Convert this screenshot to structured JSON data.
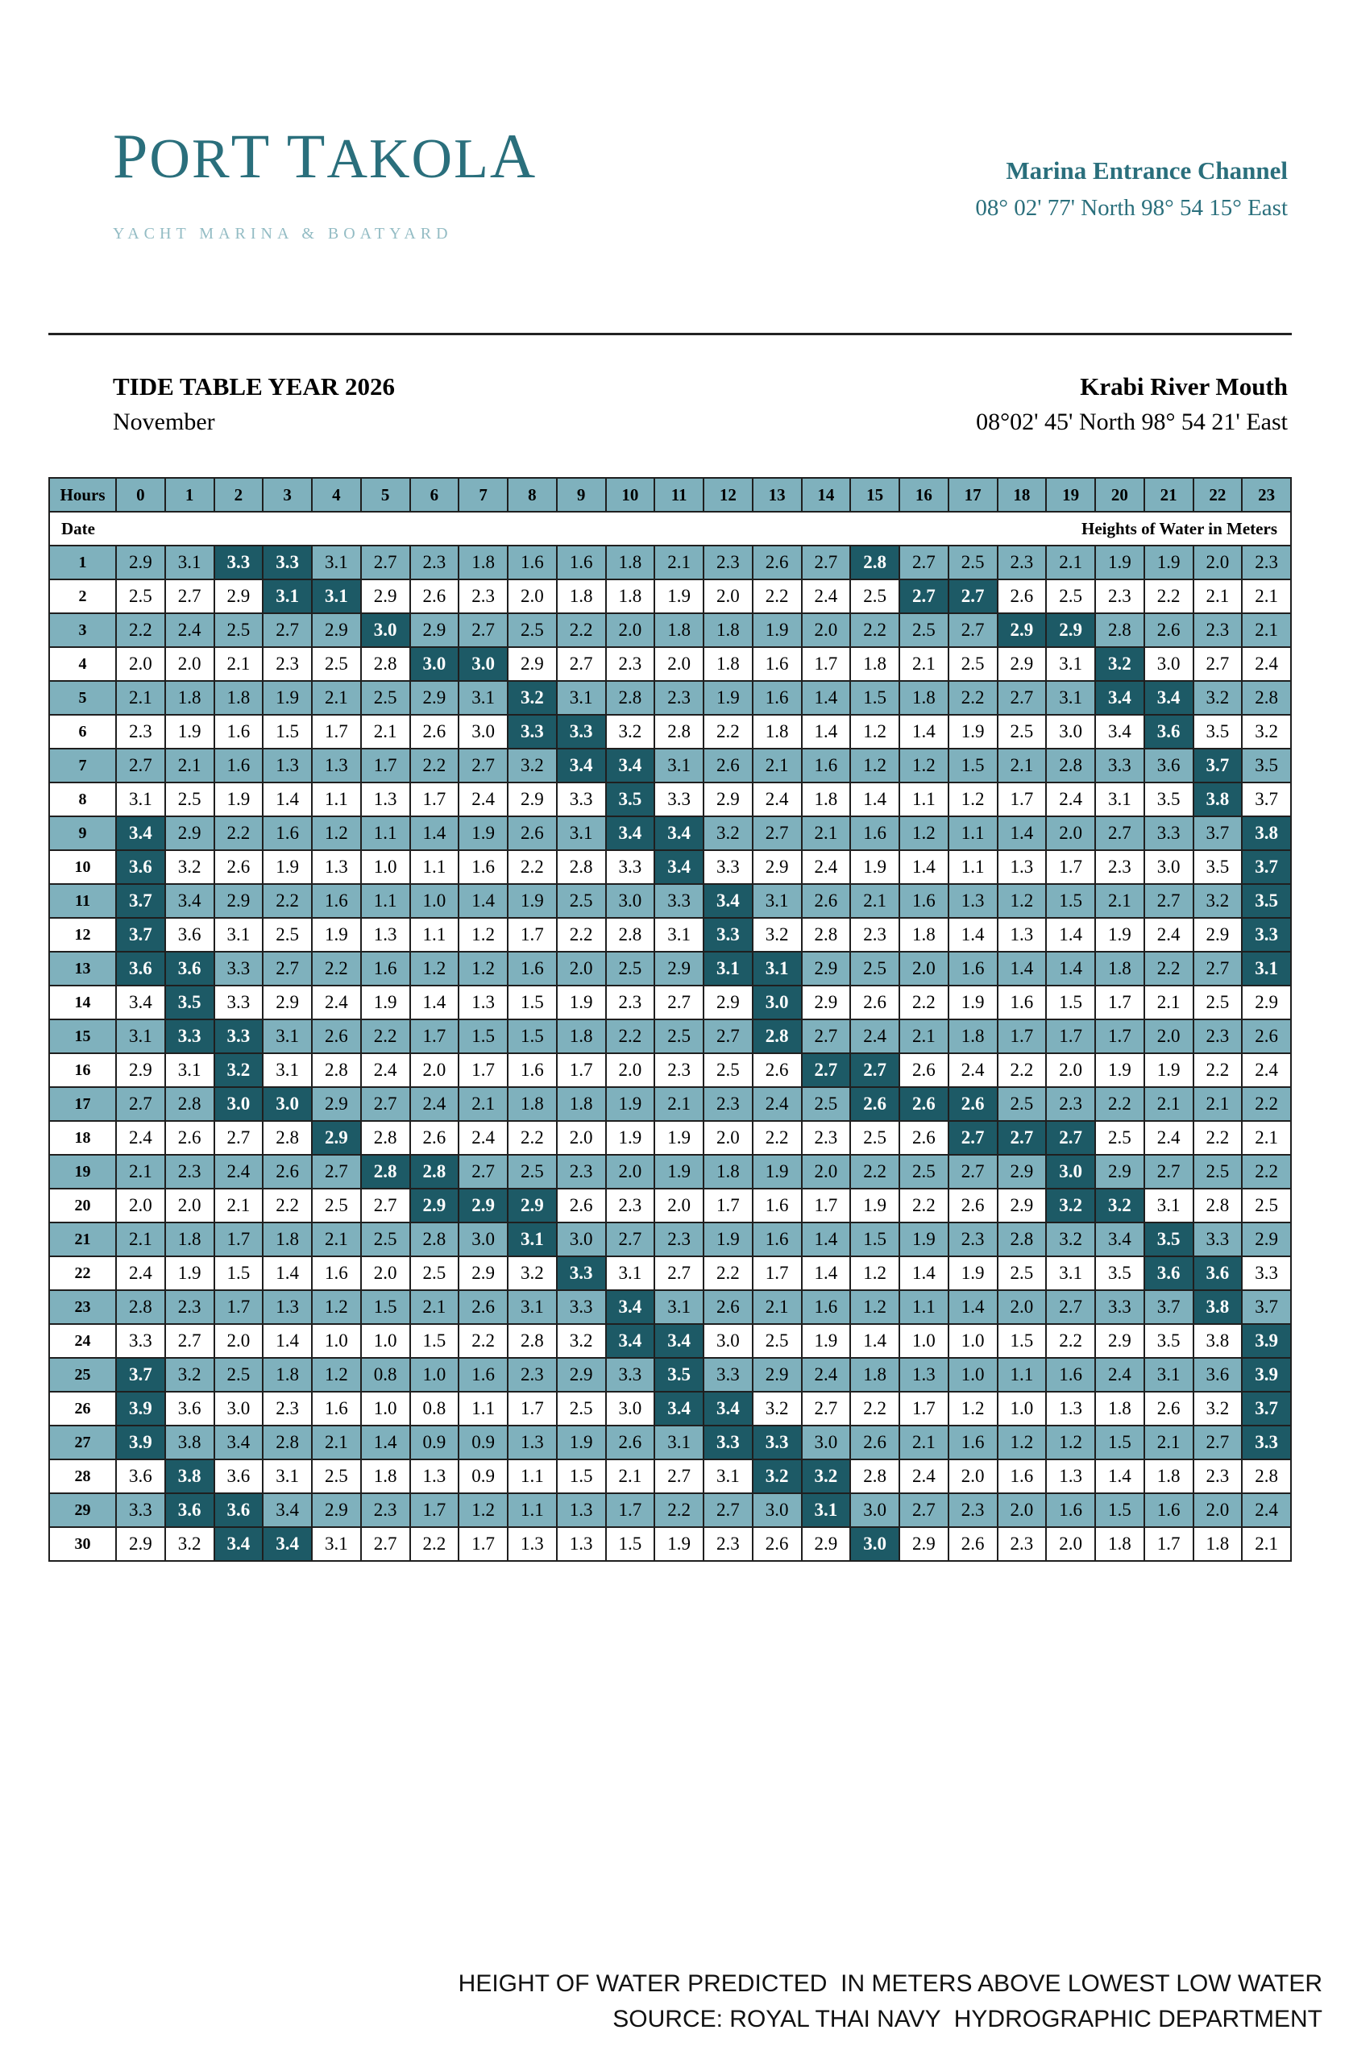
{
  "logo": {
    "name_p": "P",
    "name_or": "OR",
    "name_t": "T",
    "name_space": " ",
    "name_t2": "T",
    "name_akol": "AKOL",
    "name_a": "A",
    "tagline": "YACHT MARINA & BOATYARD"
  },
  "marina": {
    "title": "Marina Entrance Channel",
    "coords": "08° 02' 77' North  98° 54 15° East"
  },
  "tide": {
    "title": "TIDE TABLE YEAR 2026",
    "month": "November",
    "location": "Krabi River Mouth",
    "location_coords": "08°02' 45' North 98° 54 21' East"
  },
  "table": {
    "hours_label": "Hours",
    "date_label": "Date",
    "heights_label": "Heights of Water in Meters",
    "hours": [
      "0",
      "1",
      "2",
      "3",
      "4",
      "5",
      "6",
      "7",
      "8",
      "9",
      "10",
      "11",
      "12",
      "13",
      "14",
      "15",
      "16",
      "17",
      "18",
      "19",
      "20",
      "21",
      "22",
      "23"
    ],
    "rows": [
      {
        "day": "1",
        "values": [
          "2.9",
          "3.1",
          "3.3",
          "3.3",
          "3.1",
          "2.7",
          "2.3",
          "1.8",
          "1.6",
          "1.6",
          "1.8",
          "2.1",
          "2.3",
          "2.6",
          "2.7",
          "2.8",
          "2.7",
          "2.5",
          "2.3",
          "2.1",
          "1.9",
          "1.9",
          "2.0",
          "2.3"
        ],
        "highlights": [
          2,
          3,
          15
        ]
      },
      {
        "day": "2",
        "values": [
          "2.5",
          "2.7",
          "2.9",
          "3.1",
          "3.1",
          "2.9",
          "2.6",
          "2.3",
          "2.0",
          "1.8",
          "1.8",
          "1.9",
          "2.0",
          "2.2",
          "2.4",
          "2.5",
          "2.7",
          "2.7",
          "2.6",
          "2.5",
          "2.3",
          "2.2",
          "2.1",
          "2.1"
        ],
        "highlights": [
          3,
          4,
          16,
          17
        ]
      },
      {
        "day": "3",
        "values": [
          "2.2",
          "2.4",
          "2.5",
          "2.7",
          "2.9",
          "3.0",
          "2.9",
          "2.7",
          "2.5",
          "2.2",
          "2.0",
          "1.8",
          "1.8",
          "1.9",
          "2.0",
          "2.2",
          "2.5",
          "2.7",
          "2.9",
          "2.9",
          "2.8",
          "2.6",
          "2.3",
          "2.1"
        ],
        "highlights": [
          5,
          18,
          19
        ]
      },
      {
        "day": "4",
        "values": [
          "2.0",
          "2.0",
          "2.1",
          "2.3",
          "2.5",
          "2.8",
          "3.0",
          "3.0",
          "2.9",
          "2.7",
          "2.3",
          "2.0",
          "1.8",
          "1.6",
          "1.7",
          "1.8",
          "2.1",
          "2.5",
          "2.9",
          "3.1",
          "3.2",
          "3.0",
          "2.7",
          "2.4"
        ],
        "highlights": [
          6,
          7,
          20
        ]
      },
      {
        "day": "5",
        "values": [
          "2.1",
          "1.8",
          "1.8",
          "1.9",
          "2.1",
          "2.5",
          "2.9",
          "3.1",
          "3.2",
          "3.1",
          "2.8",
          "2.3",
          "1.9",
          "1.6",
          "1.4",
          "1.5",
          "1.8",
          "2.2",
          "2.7",
          "3.1",
          "3.4",
          "3.4",
          "3.2",
          "2.8"
        ],
        "highlights": [
          8,
          20,
          21
        ]
      },
      {
        "day": "6",
        "values": [
          "2.3",
          "1.9",
          "1.6",
          "1.5",
          "1.7",
          "2.1",
          "2.6",
          "3.0",
          "3.3",
          "3.3",
          "3.2",
          "2.8",
          "2.2",
          "1.8",
          "1.4",
          "1.2",
          "1.4",
          "1.9",
          "2.5",
          "3.0",
          "3.4",
          "3.6",
          "3.5",
          "3.2"
        ],
        "highlights": [
          8,
          9,
          21
        ]
      },
      {
        "day": "7",
        "values": [
          "2.7",
          "2.1",
          "1.6",
          "1.3",
          "1.3",
          "1.7",
          "2.2",
          "2.7",
          "3.2",
          "3.4",
          "3.4",
          "3.1",
          "2.6",
          "2.1",
          "1.6",
          "1.2",
          "1.2",
          "1.5",
          "2.1",
          "2.8",
          "3.3",
          "3.6",
          "3.7",
          "3.5"
        ],
        "highlights": [
          9,
          10,
          22
        ]
      },
      {
        "day": "8",
        "values": [
          "3.1",
          "2.5",
          "1.9",
          "1.4",
          "1.1",
          "1.3",
          "1.7",
          "2.4",
          "2.9",
          "3.3",
          "3.5",
          "3.3",
          "2.9",
          "2.4",
          "1.8",
          "1.4",
          "1.1",
          "1.2",
          "1.7",
          "2.4",
          "3.1",
          "3.5",
          "3.8",
          "3.7"
        ],
        "highlights": [
          10,
          22
        ]
      },
      {
        "day": "9",
        "values": [
          "3.4",
          "2.9",
          "2.2",
          "1.6",
          "1.2",
          "1.1",
          "1.4",
          "1.9",
          "2.6",
          "3.1",
          "3.4",
          "3.4",
          "3.2",
          "2.7",
          "2.1",
          "1.6",
          "1.2",
          "1.1",
          "1.4",
          "2.0",
          "2.7",
          "3.3",
          "3.7",
          "3.8"
        ],
        "highlights": [
          0,
          10,
          11,
          23
        ]
      },
      {
        "day": "10",
        "values": [
          "3.6",
          "3.2",
          "2.6",
          "1.9",
          "1.3",
          "1.0",
          "1.1",
          "1.6",
          "2.2",
          "2.8",
          "3.3",
          "3.4",
          "3.3",
          "2.9",
          "2.4",
          "1.9",
          "1.4",
          "1.1",
          "1.3",
          "1.7",
          "2.3",
          "3.0",
          "3.5",
          "3.7"
        ],
        "highlights": [
          0,
          11,
          23
        ]
      },
      {
        "day": "11",
        "values": [
          "3.7",
          "3.4",
          "2.9",
          "2.2",
          "1.6",
          "1.1",
          "1.0",
          "1.4",
          "1.9",
          "2.5",
          "3.0",
          "3.3",
          "3.4",
          "3.1",
          "2.6",
          "2.1",
          "1.6",
          "1.3",
          "1.2",
          "1.5",
          "2.1",
          "2.7",
          "3.2",
          "3.5"
        ],
        "highlights": [
          0,
          12,
          23
        ]
      },
      {
        "day": "12",
        "values": [
          "3.7",
          "3.6",
          "3.1",
          "2.5",
          "1.9",
          "1.3",
          "1.1",
          "1.2",
          "1.7",
          "2.2",
          "2.8",
          "3.1",
          "3.3",
          "3.2",
          "2.8",
          "2.3",
          "1.8",
          "1.4",
          "1.3",
          "1.4",
          "1.9",
          "2.4",
          "2.9",
          "3.3"
        ],
        "highlights": [
          0,
          12,
          23
        ]
      },
      {
        "day": "13",
        "values": [
          "3.6",
          "3.6",
          "3.3",
          "2.7",
          "2.2",
          "1.6",
          "1.2",
          "1.2",
          "1.6",
          "2.0",
          "2.5",
          "2.9",
          "3.1",
          "3.1",
          "2.9",
          "2.5",
          "2.0",
          "1.6",
          "1.4",
          "1.4",
          "1.8",
          "2.2",
          "2.7",
          "3.1"
        ],
        "highlights": [
          0,
          1,
          12,
          13,
          23
        ]
      },
      {
        "day": "14",
        "values": [
          "3.4",
          "3.5",
          "3.3",
          "2.9",
          "2.4",
          "1.9",
          "1.4",
          "1.3",
          "1.5",
          "1.9",
          "2.3",
          "2.7",
          "2.9",
          "3.0",
          "2.9",
          "2.6",
          "2.2",
          "1.9",
          "1.6",
          "1.5",
          "1.7",
          "2.1",
          "2.5",
          "2.9"
        ],
        "highlights": [
          1,
          13
        ]
      },
      {
        "day": "15",
        "values": [
          "3.1",
          "3.3",
          "3.3",
          "3.1",
          "2.6",
          "2.2",
          "1.7",
          "1.5",
          "1.5",
          "1.8",
          "2.2",
          "2.5",
          "2.7",
          "2.8",
          "2.7",
          "2.4",
          "2.1",
          "1.8",
          "1.7",
          "1.7",
          "1.7",
          "2.0",
          "2.3",
          "2.6"
        ],
        "highlights": [
          1,
          2,
          13
        ]
      },
      {
        "day": "16",
        "values": [
          "2.9",
          "3.1",
          "3.2",
          "3.1",
          "2.8",
          "2.4",
          "2.0",
          "1.7",
          "1.6",
          "1.7",
          "2.0",
          "2.3",
          "2.5",
          "2.6",
          "2.7",
          "2.7",
          "2.6",
          "2.4",
          "2.2",
          "2.0",
          "1.9",
          "1.9",
          "2.2",
          "2.4"
        ],
        "highlights": [
          2,
          14,
          15
        ]
      },
      {
        "day": "17",
        "values": [
          "2.7",
          "2.8",
          "3.0",
          "3.0",
          "2.9",
          "2.7",
          "2.4",
          "2.1",
          "1.8",
          "1.8",
          "1.9",
          "2.1",
          "2.3",
          "2.4",
          "2.5",
          "2.6",
          "2.6",
          "2.6",
          "2.5",
          "2.3",
          "2.2",
          "2.1",
          "2.1",
          "2.2"
        ],
        "highlights": [
          2,
          3,
          15,
          16,
          17
        ]
      },
      {
        "day": "18",
        "values": [
          "2.4",
          "2.6",
          "2.7",
          "2.8",
          "2.9",
          "2.8",
          "2.6",
          "2.4",
          "2.2",
          "2.0",
          "1.9",
          "1.9",
          "2.0",
          "2.2",
          "2.3",
          "2.5",
          "2.6",
          "2.7",
          "2.7",
          "2.7",
          "2.5",
          "2.4",
          "2.2",
          "2.1"
        ],
        "highlights": [
          4,
          17,
          18,
          19
        ]
      },
      {
        "day": "19",
        "values": [
          "2.1",
          "2.3",
          "2.4",
          "2.6",
          "2.7",
          "2.8",
          "2.8",
          "2.7",
          "2.5",
          "2.3",
          "2.0",
          "1.9",
          "1.8",
          "1.9",
          "2.0",
          "2.2",
          "2.5",
          "2.7",
          "2.9",
          "3.0",
          "2.9",
          "2.7",
          "2.5",
          "2.2"
        ],
        "highlights": [
          5,
          6,
          19
        ]
      },
      {
        "day": "20",
        "values": [
          "2.0",
          "2.0",
          "2.1",
          "2.2",
          "2.5",
          "2.7",
          "2.9",
          "2.9",
          "2.9",
          "2.6",
          "2.3",
          "2.0",
          "1.7",
          "1.6",
          "1.7",
          "1.9",
          "2.2",
          "2.6",
          "2.9",
          "3.2",
          "3.2",
          "3.1",
          "2.8",
          "2.5"
        ],
        "highlights": [
          6,
          7,
          8,
          19,
          20
        ]
      },
      {
        "day": "21",
        "values": [
          "2.1",
          "1.8",
          "1.7",
          "1.8",
          "2.1",
          "2.5",
          "2.8",
          "3.0",
          "3.1",
          "3.0",
          "2.7",
          "2.3",
          "1.9",
          "1.6",
          "1.4",
          "1.5",
          "1.9",
          "2.3",
          "2.8",
          "3.2",
          "3.4",
          "3.5",
          "3.3",
          "2.9"
        ],
        "highlights": [
          8,
          21
        ]
      },
      {
        "day": "22",
        "values": [
          "2.4",
          "1.9",
          "1.5",
          "1.4",
          "1.6",
          "2.0",
          "2.5",
          "2.9",
          "3.2",
          "3.3",
          "3.1",
          "2.7",
          "2.2",
          "1.7",
          "1.4",
          "1.2",
          "1.4",
          "1.9",
          "2.5",
          "3.1",
          "3.5",
          "3.6",
          "3.6",
          "3.3"
        ],
        "highlights": [
          9,
          21,
          22
        ]
      },
      {
        "day": "23",
        "values": [
          "2.8",
          "2.3",
          "1.7",
          "1.3",
          "1.2",
          "1.5",
          "2.1",
          "2.6",
          "3.1",
          "3.3",
          "3.4",
          "3.1",
          "2.6",
          "2.1",
          "1.6",
          "1.2",
          "1.1",
          "1.4",
          "2.0",
          "2.7",
          "3.3",
          "3.7",
          "3.8",
          "3.7"
        ],
        "highlights": [
          10,
          22
        ]
      },
      {
        "day": "24",
        "values": [
          "3.3",
          "2.7",
          "2.0",
          "1.4",
          "1.0",
          "1.0",
          "1.5",
          "2.2",
          "2.8",
          "3.2",
          "3.4",
          "3.4",
          "3.0",
          "2.5",
          "1.9",
          "1.4",
          "1.0",
          "1.0",
          "1.5",
          "2.2",
          "2.9",
          "3.5",
          "3.8",
          "3.9"
        ],
        "highlights": [
          10,
          11,
          23
        ]
      },
      {
        "day": "25",
        "values": [
          "3.7",
          "3.2",
          "2.5",
          "1.8",
          "1.2",
          "0.8",
          "1.0",
          "1.6",
          "2.3",
          "2.9",
          "3.3",
          "3.5",
          "3.3",
          "2.9",
          "2.4",
          "1.8",
          "1.3",
          "1.0",
          "1.1",
          "1.6",
          "2.4",
          "3.1",
          "3.6",
          "3.9"
        ],
        "highlights": [
          0,
          11,
          23
        ]
      },
      {
        "day": "26",
        "values": [
          "3.9",
          "3.6",
          "3.0",
          "2.3",
          "1.6",
          "1.0",
          "0.8",
          "1.1",
          "1.7",
          "2.5",
          "3.0",
          "3.4",
          "3.4",
          "3.2",
          "2.7",
          "2.2",
          "1.7",
          "1.2",
          "1.0",
          "1.3",
          "1.8",
          "2.6",
          "3.2",
          "3.7"
        ],
        "highlights": [
          0,
          11,
          12,
          23
        ]
      },
      {
        "day": "27",
        "values": [
          "3.9",
          "3.8",
          "3.4",
          "2.8",
          "2.1",
          "1.4",
          "0.9",
          "0.9",
          "1.3",
          "1.9",
          "2.6",
          "3.1",
          "3.3",
          "3.3",
          "3.0",
          "2.6",
          "2.1",
          "1.6",
          "1.2",
          "1.2",
          "1.5",
          "2.1",
          "2.7",
          "3.3"
        ],
        "highlights": [
          0,
          12,
          13,
          23
        ]
      },
      {
        "day": "28",
        "values": [
          "3.6",
          "3.8",
          "3.6",
          "3.1",
          "2.5",
          "1.8",
          "1.3",
          "0.9",
          "1.1",
          "1.5",
          "2.1",
          "2.7",
          "3.1",
          "3.2",
          "3.2",
          "2.8",
          "2.4",
          "2.0",
          "1.6",
          "1.3",
          "1.4",
          "1.8",
          "2.3",
          "2.8"
        ],
        "highlights": [
          1,
          13,
          14
        ]
      },
      {
        "day": "29",
        "values": [
          "3.3",
          "3.6",
          "3.6",
          "3.4",
          "2.9",
          "2.3",
          "1.7",
          "1.2",
          "1.1",
          "1.3",
          "1.7",
          "2.2",
          "2.7",
          "3.0",
          "3.1",
          "3.0",
          "2.7",
          "2.3",
          "2.0",
          "1.6",
          "1.5",
          "1.6",
          "2.0",
          "2.4"
        ],
        "highlights": [
          1,
          2,
          14
        ]
      },
      {
        "day": "30",
        "values": [
          "2.9",
          "3.2",
          "3.4",
          "3.4",
          "3.1",
          "2.7",
          "2.2",
          "1.7",
          "1.3",
          "1.3",
          "1.5",
          "1.9",
          "2.3",
          "2.6",
          "2.9",
          "3.0",
          "2.9",
          "2.6",
          "2.3",
          "2.0",
          "1.8",
          "1.7",
          "1.8",
          "2.1"
        ],
        "highlights": [
          2,
          3,
          15
        ]
      }
    ]
  },
  "footer": {
    "line1": "HEIGHT OF WATER PREDICTED  IN METERS ABOVE LOWEST LOW WATER",
    "line2": "SOURCE: ROYAL THAI NAVY  HYDROGRAPHIC DEPARTMENT"
  },
  "colors": {
    "brand": "#2a6f7c",
    "row_band": "#7fb1bd",
    "highlight": "#1d5a66"
  }
}
